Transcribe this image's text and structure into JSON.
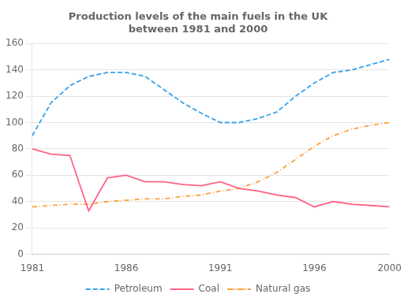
{
  "chart_data": {
    "type": "line",
    "title": "Production levels of the main fuels in the UK\nbetween 1981 and 2000",
    "x": [
      1981,
      1982,
      1983,
      1984,
      1985,
      1986,
      1987,
      1988,
      1989,
      1990,
      1991,
      1992,
      1993,
      1994,
      1995,
      1996,
      1997,
      1998,
      1999,
      2000
    ],
    "series": [
      {
        "name": "Petroleum",
        "line_style": "dashed",
        "values": [
          90,
          115,
          128,
          135,
          138,
          138,
          135,
          125,
          115,
          107,
          100,
          100,
          103,
          108,
          120,
          130,
          138,
          140,
          144,
          148
        ]
      },
      {
        "name": "Coal",
        "line_style": "solid",
        "values": [
          80,
          76,
          75,
          33,
          58,
          60,
          55,
          55,
          53,
          52,
          55,
          50,
          48,
          45,
          43,
          36,
          40,
          38,
          37,
          36
        ]
      },
      {
        "name": "Natural gas",
        "line_style": "dashdot",
        "values": [
          36,
          37,
          38,
          38,
          40,
          41,
          42,
          42,
          44,
          45,
          48,
          50,
          55,
          62,
          72,
          82,
          90,
          95,
          98,
          100
        ]
      }
    ],
    "xlim": [
      1981,
      2000
    ],
    "xticks": [
      1981,
      1986,
      1991,
      1996,
      2000
    ],
    "ylim": [
      0,
      160
    ],
    "yticks": [
      0,
      20,
      40,
      60,
      80,
      100,
      120,
      140,
      160
    ],
    "grid": "y",
    "legend": "bottom"
  }
}
